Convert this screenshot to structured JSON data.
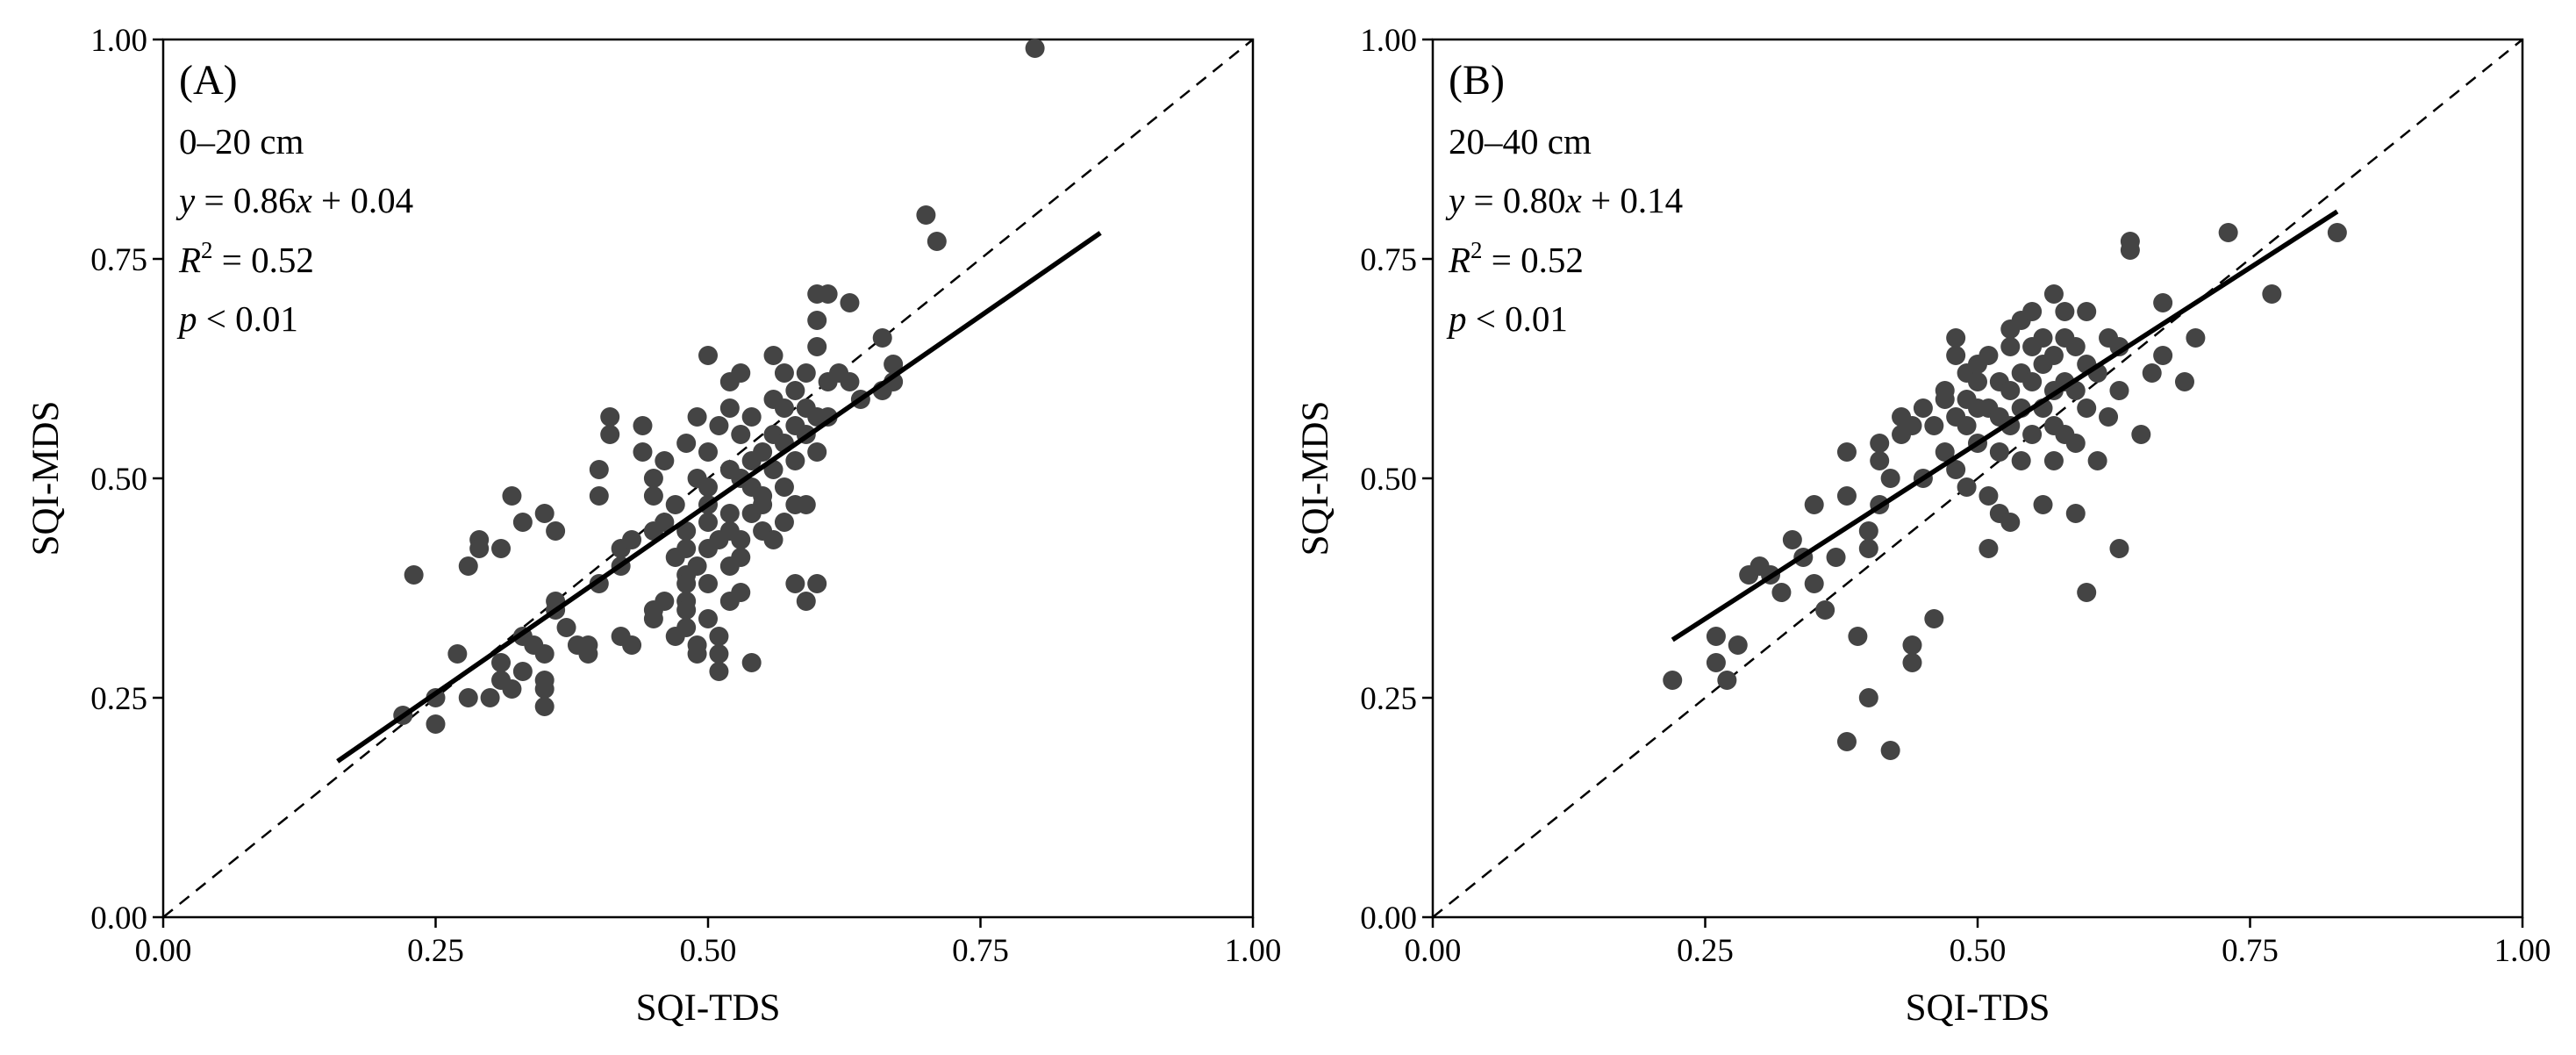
{
  "chart_data": [
    {
      "type": "scatter",
      "panel_label": "(A)",
      "depth_label": "0–20 cm",
      "equation": {
        "y": "y",
        "eq": " = 0.86",
        "x": "x",
        "rest": " + 0.04"
      },
      "r2": {
        "R": "R",
        "sup": "2",
        "rest": " = 0.52"
      },
      "p_value": {
        "p": "p",
        "rest": " < 0.01"
      },
      "xlabel": "SQI-TDS",
      "ylabel": "SQI-MDS",
      "xlim": [
        0,
        1
      ],
      "ylim": [
        0,
        1
      ],
      "ticks": [
        0,
        0.25,
        0.5,
        0.75,
        1
      ],
      "tick_labels": [
        "0.00",
        "0.25",
        "0.50",
        "0.75",
        "1.00"
      ],
      "regression": {
        "slope": 0.86,
        "intercept": 0.04,
        "x_range": [
          0.16,
          0.86
        ]
      },
      "one_to_one_line": true,
      "marker_color": "#444444",
      "points": [
        [
          0.22,
          0.23
        ],
        [
          0.23,
          0.39
        ],
        [
          0.25,
          0.22
        ],
        [
          0.25,
          0.25
        ],
        [
          0.27,
          0.3
        ],
        [
          0.28,
          0.25
        ],
        [
          0.28,
          0.4
        ],
        [
          0.29,
          0.43
        ],
        [
          0.29,
          0.42
        ],
        [
          0.3,
          0.25
        ],
        [
          0.31,
          0.42
        ],
        [
          0.31,
          0.29
        ],
        [
          0.31,
          0.27
        ],
        [
          0.32,
          0.48
        ],
        [
          0.32,
          0.26
        ],
        [
          0.33,
          0.45
        ],
        [
          0.33,
          0.28
        ],
        [
          0.33,
          0.32
        ],
        [
          0.34,
          0.31
        ],
        [
          0.35,
          0.46
        ],
        [
          0.35,
          0.27
        ],
        [
          0.35,
          0.26
        ],
        [
          0.35,
          0.24
        ],
        [
          0.35,
          0.3
        ],
        [
          0.36,
          0.44
        ],
        [
          0.36,
          0.35
        ],
        [
          0.36,
          0.36
        ],
        [
          0.37,
          0.33
        ],
        [
          0.38,
          0.31
        ],
        [
          0.39,
          0.3
        ],
        [
          0.39,
          0.31
        ],
        [
          0.4,
          0.38
        ],
        [
          0.4,
          0.48
        ],
        [
          0.4,
          0.51
        ],
        [
          0.41,
          0.57
        ],
        [
          0.41,
          0.55
        ],
        [
          0.42,
          0.4
        ],
        [
          0.42,
          0.32
        ],
        [
          0.42,
          0.42
        ],
        [
          0.43,
          0.31
        ],
        [
          0.43,
          0.43
        ],
        [
          0.44,
          0.53
        ],
        [
          0.44,
          0.56
        ],
        [
          0.45,
          0.44
        ],
        [
          0.45,
          0.48
        ],
        [
          0.45,
          0.5
        ],
        [
          0.45,
          0.35
        ],
        [
          0.45,
          0.34
        ],
        [
          0.46,
          0.36
        ],
        [
          0.46,
          0.45
        ],
        [
          0.46,
          0.52
        ],
        [
          0.47,
          0.32
        ],
        [
          0.47,
          0.41
        ],
        [
          0.47,
          0.47
        ],
        [
          0.48,
          0.39
        ],
        [
          0.48,
          0.36
        ],
        [
          0.48,
          0.35
        ],
        [
          0.48,
          0.42
        ],
        [
          0.48,
          0.44
        ],
        [
          0.48,
          0.54
        ],
        [
          0.48,
          0.38
        ],
        [
          0.48,
          0.33
        ],
        [
          0.49,
          0.5
        ],
        [
          0.49,
          0.57
        ],
        [
          0.49,
          0.3
        ],
        [
          0.49,
          0.31
        ],
        [
          0.49,
          0.4
        ],
        [
          0.5,
          0.45
        ],
        [
          0.5,
          0.38
        ],
        [
          0.5,
          0.42
        ],
        [
          0.5,
          0.47
        ],
        [
          0.5,
          0.49
        ],
        [
          0.5,
          0.53
        ],
        [
          0.5,
          0.64
        ],
        [
          0.5,
          0.34
        ],
        [
          0.51,
          0.3
        ],
        [
          0.51,
          0.28
        ],
        [
          0.51,
          0.32
        ],
        [
          0.51,
          0.43
        ],
        [
          0.51,
          0.56
        ],
        [
          0.52,
          0.36
        ],
        [
          0.52,
          0.4
        ],
        [
          0.52,
          0.46
        ],
        [
          0.52,
          0.51
        ],
        [
          0.52,
          0.58
        ],
        [
          0.52,
          0.61
        ],
        [
          0.52,
          0.44
        ],
        [
          0.53,
          0.37
        ],
        [
          0.53,
          0.43
        ],
        [
          0.53,
          0.5
        ],
        [
          0.53,
          0.55
        ],
        [
          0.53,
          0.62
        ],
        [
          0.53,
          0.41
        ],
        [
          0.54,
          0.29
        ],
        [
          0.54,
          0.46
        ],
        [
          0.54,
          0.49
        ],
        [
          0.54,
          0.52
        ],
        [
          0.54,
          0.57
        ],
        [
          0.55,
          0.44
        ],
        [
          0.55,
          0.48
        ],
        [
          0.55,
          0.53
        ],
        [
          0.55,
          0.47
        ],
        [
          0.56,
          0.43
        ],
        [
          0.56,
          0.51
        ],
        [
          0.56,
          0.55
        ],
        [
          0.56,
          0.59
        ],
        [
          0.56,
          0.64
        ],
        [
          0.57,
          0.45
        ],
        [
          0.57,
          0.49
        ],
        [
          0.57,
          0.54
        ],
        [
          0.57,
          0.58
        ],
        [
          0.57,
          0.62
        ],
        [
          0.58,
          0.38
        ],
        [
          0.58,
          0.47
        ],
        [
          0.58,
          0.52
        ],
        [
          0.58,
          0.56
        ],
        [
          0.58,
          0.6
        ],
        [
          0.59,
          0.36
        ],
        [
          0.59,
          0.47
        ],
        [
          0.59,
          0.55
        ],
        [
          0.59,
          0.62
        ],
        [
          0.59,
          0.58
        ],
        [
          0.6,
          0.38
        ],
        [
          0.6,
          0.53
        ],
        [
          0.6,
          0.57
        ],
        [
          0.6,
          0.65
        ],
        [
          0.6,
          0.68
        ],
        [
          0.6,
          0.71
        ],
        [
          0.61,
          0.57
        ],
        [
          0.61,
          0.61
        ],
        [
          0.61,
          0.71
        ],
        [
          0.62,
          0.62
        ],
        [
          0.63,
          0.61
        ],
        [
          0.63,
          0.7
        ],
        [
          0.64,
          0.59
        ],
        [
          0.66,
          0.66
        ],
        [
          0.66,
          0.6
        ],
        [
          0.67,
          0.63
        ],
        [
          0.67,
          0.61
        ],
        [
          0.7,
          0.8
        ],
        [
          0.71,
          0.77
        ],
        [
          0.8,
          0.99
        ]
      ]
    },
    {
      "type": "scatter",
      "panel_label": "(B)",
      "depth_label": "20–40 cm",
      "equation": {
        "y": "y",
        "eq": " = 0.80",
        "x": "x",
        "rest": " + 0.14"
      },
      "r2": {
        "R": "R",
        "sup": "2",
        "rest": " = 0.52"
      },
      "p_value": {
        "p": "p",
        "rest": " < 0.01"
      },
      "xlabel": "SQI-TDS",
      "ylabel": "SQI-MDS",
      "xlim": [
        0,
        1
      ],
      "ylim": [
        0,
        1
      ],
      "ticks": [
        0,
        0.25,
        0.5,
        0.75,
        1
      ],
      "tick_labels": [
        "0.00",
        "0.25",
        "0.50",
        "0.75",
        "1.00"
      ],
      "regression": {
        "slope": 0.8,
        "intercept": 0.14,
        "x_range": [
          0.22,
          0.83
        ]
      },
      "one_to_one_line": true,
      "marker_color": "#444444",
      "points": [
        [
          0.22,
          0.27
        ],
        [
          0.26,
          0.32
        ],
        [
          0.26,
          0.29
        ],
        [
          0.27,
          0.27
        ],
        [
          0.28,
          0.31
        ],
        [
          0.29,
          0.39
        ],
        [
          0.3,
          0.4
        ],
        [
          0.31,
          0.39
        ],
        [
          0.32,
          0.37
        ],
        [
          0.33,
          0.43
        ],
        [
          0.34,
          0.41
        ],
        [
          0.35,
          0.38
        ],
        [
          0.35,
          0.47
        ],
        [
          0.36,
          0.35
        ],
        [
          0.37,
          0.41
        ],
        [
          0.38,
          0.53
        ],
        [
          0.38,
          0.48
        ],
        [
          0.38,
          0.2
        ],
        [
          0.39,
          0.32
        ],
        [
          0.4,
          0.25
        ],
        [
          0.4,
          0.42
        ],
        [
          0.4,
          0.44
        ],
        [
          0.41,
          0.47
        ],
        [
          0.41,
          0.54
        ],
        [
          0.41,
          0.52
        ],
        [
          0.42,
          0.5
        ],
        [
          0.42,
          0.19
        ],
        [
          0.43,
          0.55
        ],
        [
          0.43,
          0.57
        ],
        [
          0.44,
          0.31
        ],
        [
          0.44,
          0.29
        ],
        [
          0.44,
          0.56
        ],
        [
          0.45,
          0.5
        ],
        [
          0.45,
          0.58
        ],
        [
          0.46,
          0.34
        ],
        [
          0.46,
          0.56
        ],
        [
          0.47,
          0.59
        ],
        [
          0.47,
          0.53
        ],
        [
          0.47,
          0.6
        ],
        [
          0.48,
          0.51
        ],
        [
          0.48,
          0.57
        ],
        [
          0.48,
          0.64
        ],
        [
          0.48,
          0.66
        ],
        [
          0.49,
          0.49
        ],
        [
          0.49,
          0.56
        ],
        [
          0.49,
          0.59
        ],
        [
          0.49,
          0.62
        ],
        [
          0.5,
          0.54
        ],
        [
          0.5,
          0.58
        ],
        [
          0.5,
          0.61
        ],
        [
          0.5,
          0.63
        ],
        [
          0.51,
          0.42
        ],
        [
          0.51,
          0.48
        ],
        [
          0.51,
          0.58
        ],
        [
          0.51,
          0.64
        ],
        [
          0.52,
          0.46
        ],
        [
          0.52,
          0.53
        ],
        [
          0.52,
          0.57
        ],
        [
          0.52,
          0.61
        ],
        [
          0.53,
          0.45
        ],
        [
          0.53,
          0.56
        ],
        [
          0.53,
          0.6
        ],
        [
          0.53,
          0.65
        ],
        [
          0.53,
          0.67
        ],
        [
          0.54,
          0.52
        ],
        [
          0.54,
          0.58
        ],
        [
          0.54,
          0.62
        ],
        [
          0.54,
          0.68
        ],
        [
          0.55,
          0.55
        ],
        [
          0.55,
          0.61
        ],
        [
          0.55,
          0.65
        ],
        [
          0.55,
          0.69
        ],
        [
          0.56,
          0.47
        ],
        [
          0.56,
          0.58
        ],
        [
          0.56,
          0.63
        ],
        [
          0.56,
          0.66
        ],
        [
          0.57,
          0.52
        ],
        [
          0.57,
          0.56
        ],
        [
          0.57,
          0.6
        ],
        [
          0.57,
          0.64
        ],
        [
          0.57,
          0.71
        ],
        [
          0.58,
          0.55
        ],
        [
          0.58,
          0.61
        ],
        [
          0.58,
          0.66
        ],
        [
          0.58,
          0.69
        ],
        [
          0.59,
          0.46
        ],
        [
          0.59,
          0.54
        ],
        [
          0.59,
          0.6
        ],
        [
          0.59,
          0.65
        ],
        [
          0.6,
          0.37
        ],
        [
          0.6,
          0.58
        ],
        [
          0.6,
          0.63
        ],
        [
          0.6,
          0.69
        ],
        [
          0.61,
          0.52
        ],
        [
          0.61,
          0.62
        ],
        [
          0.62,
          0.57
        ],
        [
          0.62,
          0.66
        ],
        [
          0.63,
          0.42
        ],
        [
          0.63,
          0.6
        ],
        [
          0.63,
          0.65
        ],
        [
          0.64,
          0.76
        ],
        [
          0.64,
          0.77
        ],
        [
          0.65,
          0.55
        ],
        [
          0.66,
          0.62
        ],
        [
          0.67,
          0.64
        ],
        [
          0.67,
          0.7
        ],
        [
          0.69,
          0.61
        ],
        [
          0.7,
          0.66
        ],
        [
          0.73,
          0.78
        ],
        [
          0.77,
          0.71
        ],
        [
          0.83,
          0.78
        ]
      ]
    }
  ]
}
